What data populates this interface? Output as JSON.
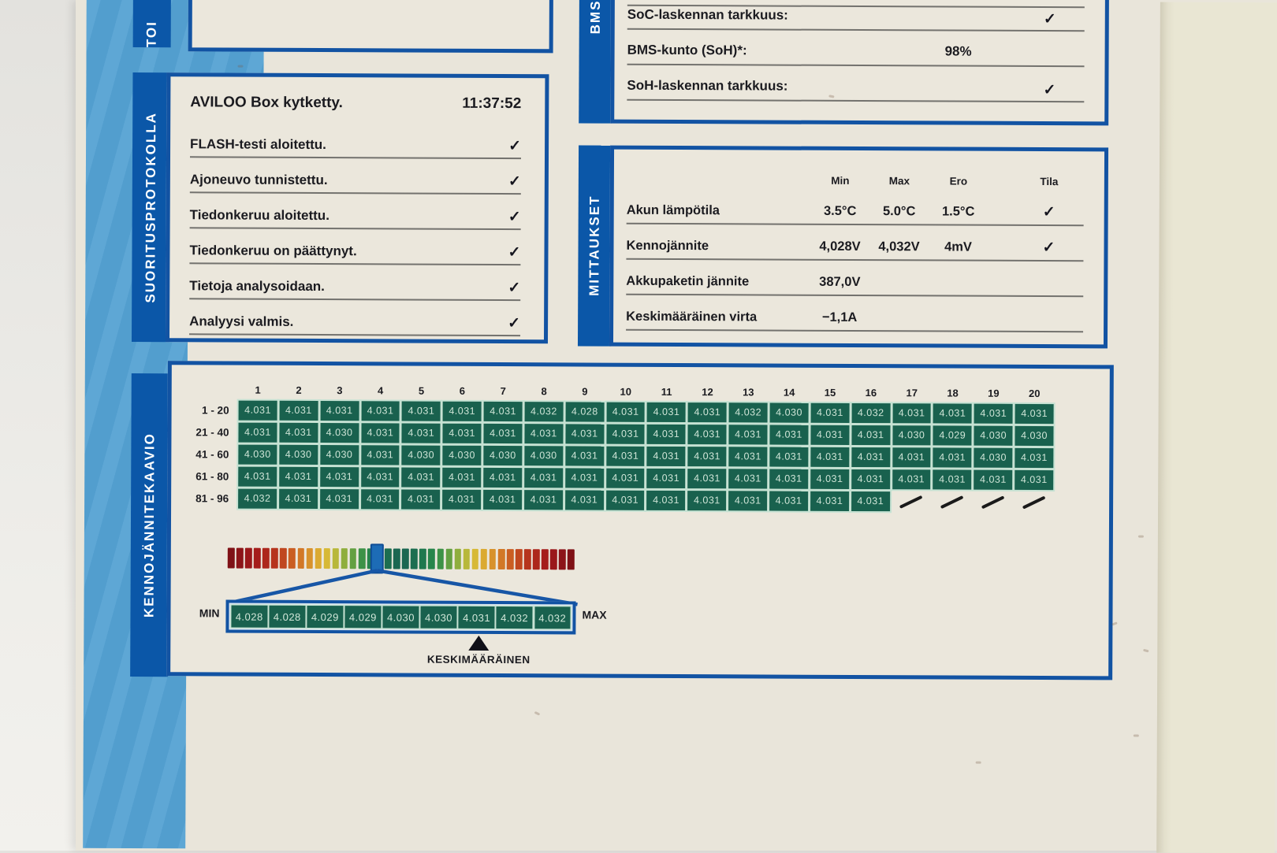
{
  "glyphs": {
    "check": "✓"
  },
  "colors": {
    "accent_blue": "#1253a3",
    "band_blue": "#55a2d3",
    "cell_green": "#19614e",
    "marker_blue": "#1d6cb6",
    "paper": "#e9e5da"
  },
  "sections": {
    "top": {
      "label": "TOI"
    },
    "protocol": {
      "label": "SUORITUSPROTOKOLLA"
    },
    "bms": {
      "label": "BMS"
    },
    "measurements": {
      "label": "MITTAUKSET"
    },
    "chart": {
      "label": "KENNOJÄNNITEKAAVIO"
    }
  },
  "protocol": {
    "title": "AVILOO Box kytketty.",
    "timestamp": "11:37:52",
    "items": [
      {
        "label": "FLASH-testi aloitettu.",
        "status": "✓"
      },
      {
        "label": "Ajoneuvo tunnistettu.",
        "status": "✓"
      },
      {
        "label": "Tiedonkeruu aloitettu.",
        "status": "✓"
      },
      {
        "label": "Tiedonkeruu on päättynyt.",
        "status": "✓"
      },
      {
        "label": "Tietoja analysoidaan.",
        "status": "✓"
      },
      {
        "label": "Analyysi valmis.",
        "status": "✓"
      }
    ]
  },
  "bms": {
    "rows": [
      {
        "label": "SoC-laskennan tarkkuus:",
        "value": "",
        "status": "✓"
      },
      {
        "label": "BMS-kunto (SoH)*:",
        "value": "98%",
        "status": ""
      },
      {
        "label": "SoH-laskennan tarkkuus:",
        "value": "",
        "status": "✓"
      }
    ]
  },
  "measurements": {
    "columns": [
      "Min",
      "Max",
      "Ero",
      "Tila"
    ],
    "rows": [
      {
        "label": "Akun lämpötila",
        "min": "3.5°C",
        "max": "5.0°C",
        "ero": "1.5°C",
        "status": "✓"
      },
      {
        "label": "Kennojännite",
        "min": "4,028V",
        "max": "4,032V",
        "ero": "4mV",
        "status": "✓"
      },
      {
        "label": "Akkupaketin jännite",
        "min": "387,0V",
        "max": "",
        "ero": "",
        "status": ""
      },
      {
        "label": "Keskimääräinen virta",
        "min": "−1,1A",
        "max": "",
        "ero": "",
        "status": ""
      }
    ]
  },
  "chart_data": {
    "type": "heatmap",
    "title": "KENNOJÄNNITEKAAVIO",
    "unit": "V",
    "columns": [
      "1",
      "2",
      "3",
      "4",
      "5",
      "6",
      "7",
      "8",
      "9",
      "10",
      "11",
      "12",
      "13",
      "14",
      "15",
      "16",
      "17",
      "18",
      "19",
      "20"
    ],
    "row_labels": [
      "1 - 20",
      "21 - 40",
      "41 - 60",
      "61 - 80",
      "81 - 96"
    ],
    "values": [
      [
        "4.031",
        "4.031",
        "4.031",
        "4.031",
        "4.031",
        "4.031",
        "4.031",
        "4.032",
        "4.028",
        "4.031",
        "4.031",
        "4.031",
        "4.032",
        "4.030",
        "4.031",
        "4.032",
        "4.031",
        "4.031",
        "4.031",
        "4.031"
      ],
      [
        "4.031",
        "4.031",
        "4.030",
        "4.031",
        "4.031",
        "4.031",
        "4.031",
        "4.031",
        "4.031",
        "4.031",
        "4.031",
        "4.031",
        "4.031",
        "4.031",
        "4.031",
        "4.031",
        "4.030",
        "4.029",
        "4.030",
        "4.030"
      ],
      [
        "4.030",
        "4.030",
        "4.030",
        "4.031",
        "4.030",
        "4.030",
        "4.030",
        "4.030",
        "4.031",
        "4.031",
        "4.031",
        "4.031",
        "4.031",
        "4.031",
        "4.031",
        "4.031",
        "4.031",
        "4.031",
        "4.030",
        "4.031"
      ],
      [
        "4.031",
        "4.031",
        "4.031",
        "4.031",
        "4.031",
        "4.031",
        "4.031",
        "4.031",
        "4.031",
        "4.031",
        "4.031",
        "4.031",
        "4.031",
        "4.031",
        "4.031",
        "4.031",
        "4.031",
        "4.031",
        "4.031",
        "4.031"
      ],
      [
        "4.032",
        "4.031",
        "4.031",
        "4.031",
        "4.031",
        "4.031",
        "4.031",
        "4.031",
        "4.031",
        "4.031",
        "4.031",
        "4.031",
        "4.031",
        "4.031",
        "4.031",
        "4.031"
      ]
    ],
    "scale": {
      "min_label": "MIN",
      "max_label": "MAX",
      "cells": [
        "4.028",
        "4.028",
        "4.029",
        "4.029",
        "4.030",
        "4.030",
        "4.031",
        "4.032",
        "4.032"
      ],
      "average_label": "KESKIMÄÄRÄINEN",
      "average_cell_index": 6
    },
    "gradient": {
      "marker_fraction": 0.432,
      "colors": [
        "#7f1116",
        "#8c1418",
        "#9a181a",
        "#a51d1b",
        "#ad271c",
        "#b6341d",
        "#c0471f",
        "#ca5e22",
        "#d27827",
        "#d8922c",
        "#dbaa31",
        "#d7b936",
        "#b8b83a",
        "#8fae3d",
        "#63a041",
        "#3d9247",
        "#27854b",
        "#1e784e",
        "#1c6e50",
        "#1b6751",
        "#1b6751",
        "#1c6e50",
        "#1e784e",
        "#27854b",
        "#3d9247",
        "#63a041",
        "#8fae3d",
        "#b8b83a",
        "#d7b936",
        "#dbaa31",
        "#d8922c",
        "#d27827",
        "#ca5e22",
        "#c0471f",
        "#b6341d",
        "#ad271c",
        "#a51d1b",
        "#9a181a",
        "#8c1418",
        "#7f1116"
      ]
    }
  }
}
